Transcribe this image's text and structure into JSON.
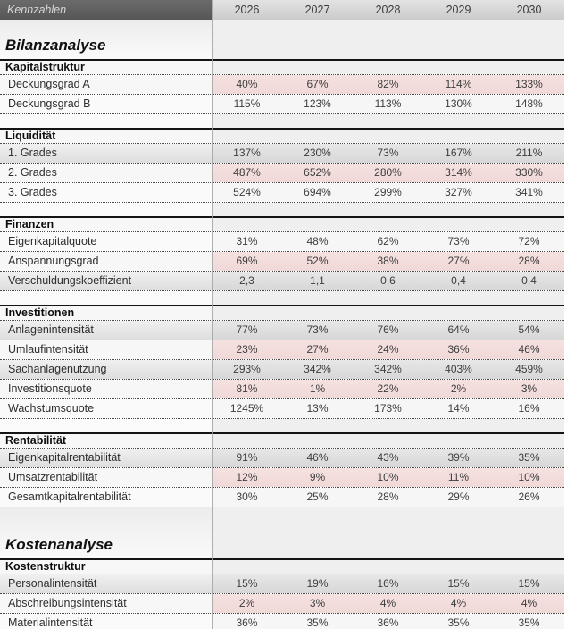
{
  "header": {
    "title": "Kennzahlen",
    "years": [
      "2026",
      "2027",
      "2028",
      "2029",
      "2030"
    ]
  },
  "colors": {
    "header_dark": "#5e5e5e",
    "header_light": "#d6d6d6",
    "band_pink": "#f2dcdb",
    "band_gray": "#dcdcdc",
    "band_light": "#f6f6f6",
    "note_red": "#d60000"
  },
  "sections": [
    {
      "type": "title",
      "label": "Bilanzanalyse"
    },
    {
      "type": "group",
      "label": "Kapitalstruktur",
      "rows": [
        {
          "label": "Deckungsgrad A",
          "band": "pink",
          "note": true,
          "values": [
            "40%",
            "67%",
            "82%",
            "114%",
            "133%"
          ]
        },
        {
          "label": "Deckungsgrad B",
          "band": "light",
          "note": true,
          "values": [
            "115%",
            "123%",
            "113%",
            "130%",
            "148%"
          ]
        }
      ]
    },
    {
      "type": "group",
      "label": "Liquidität",
      "rows": [
        {
          "label": "1. Grades",
          "band": "gray",
          "note": true,
          "values": [
            "137%",
            "230%",
            "73%",
            "167%",
            "211%"
          ]
        },
        {
          "label": "2. Grades",
          "band": "pink",
          "note": true,
          "values": [
            "487%",
            "652%",
            "280%",
            "314%",
            "330%"
          ]
        },
        {
          "label": "3. Grades",
          "band": "light",
          "note": true,
          "values": [
            "524%",
            "694%",
            "299%",
            "327%",
            "341%"
          ]
        }
      ]
    },
    {
      "type": "group",
      "label": "Finanzen",
      "rows": [
        {
          "label": "Eigenkapitalquote",
          "band": "light",
          "note": true,
          "values": [
            "31%",
            "48%",
            "62%",
            "73%",
            "72%"
          ]
        },
        {
          "label": "Anspannungsgrad",
          "band": "pink",
          "note": true,
          "values": [
            "69%",
            "52%",
            "38%",
            "27%",
            "28%"
          ]
        },
        {
          "label": "Verschuldungskoeffizient",
          "band": "gray",
          "note": true,
          "values": [
            "2,3",
            "1,1",
            "0,6",
            "0,4",
            "0,4"
          ]
        }
      ]
    },
    {
      "type": "group",
      "label": "Investitionen",
      "rows": [
        {
          "label": "Anlagenintensität",
          "band": "gray",
          "note": true,
          "values": [
            "77%",
            "73%",
            "76%",
            "64%",
            "54%"
          ]
        },
        {
          "label": "Umlaufintensität",
          "band": "pink",
          "note": true,
          "values": [
            "23%",
            "27%",
            "24%",
            "36%",
            "46%"
          ]
        },
        {
          "label": "Sachanlagenutzung",
          "band": "gray",
          "note": true,
          "values": [
            "293%",
            "342%",
            "342%",
            "403%",
            "459%"
          ]
        },
        {
          "label": "Investitionsquote",
          "band": "pink",
          "note": true,
          "values": [
            "81%",
            "1%",
            "22%",
            "2%",
            "3%"
          ]
        },
        {
          "label": "Wachstumsquote",
          "band": "light",
          "note": true,
          "values": [
            "1245%",
            "13%",
            "173%",
            "14%",
            "16%"
          ]
        }
      ]
    },
    {
      "type": "group",
      "label": "Rentabilität",
      "rows": [
        {
          "label": "Eigenkapitalrentabilität",
          "band": "gray",
          "note": true,
          "values": [
            "91%",
            "46%",
            "43%",
            "39%",
            "35%"
          ]
        },
        {
          "label": "Umsatzrentabilität",
          "band": "pink",
          "note": true,
          "values": [
            "12%",
            "9%",
            "10%",
            "11%",
            "10%"
          ]
        },
        {
          "label": "Gesamtkapitalrentabilität",
          "band": "light",
          "note": true,
          "values": [
            "30%",
            "25%",
            "28%",
            "29%",
            "26%"
          ]
        }
      ]
    },
    {
      "type": "title",
      "label": "Kostenanalyse"
    },
    {
      "type": "group",
      "label": "Kostenstruktur",
      "rows": [
        {
          "label": "Personalintensität",
          "band": "gray",
          "note": true,
          "values": [
            "15%",
            "19%",
            "16%",
            "15%",
            "15%"
          ]
        },
        {
          "label": "Abschreibungsintensität",
          "band": "pink",
          "note": true,
          "values": [
            "2%",
            "3%",
            "4%",
            "4%",
            "4%"
          ]
        },
        {
          "label": "Materialintensität",
          "band": "light",
          "note": true,
          "values": [
            "36%",
            "35%",
            "36%",
            "35%",
            "35%"
          ]
        }
      ]
    }
  ]
}
